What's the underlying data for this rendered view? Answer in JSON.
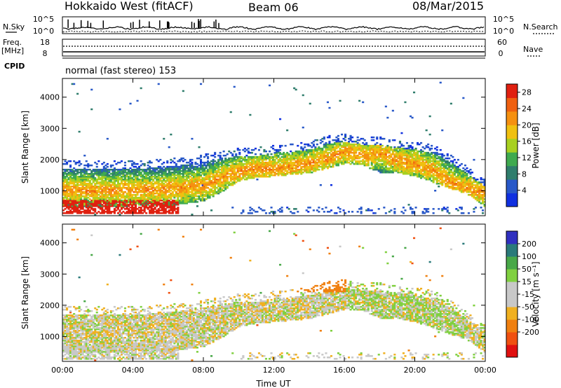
{
  "header": {
    "title": "Hokkaido West (fitACF)",
    "beam": "Beam 06",
    "date": "08/Mar/2015"
  },
  "top_panels": {
    "nsky_label": "N.Sky",
    "nsky_ticks": [
      "10^5",
      "10^0"
    ],
    "nsearch_label": "N.Search",
    "nsearch_ticks": [
      "10^5",
      "10^0"
    ],
    "freq_label_1": "Freq.",
    "freq_label_2": "[MHz]",
    "freq_ticks": [
      "18",
      "8"
    ],
    "nave_label": "Nave",
    "nave_ticks": [
      "60",
      "0"
    ],
    "cpid_label": "CPID",
    "cpid_value": "normal (fast stereo) 153"
  },
  "colors": {
    "power_scale": [
      "#1030e0",
      "#2858c8",
      "#2f7d6c",
      "#3faa4f",
      "#a8d020",
      "#f0c010",
      "#f59010",
      "#ef6010",
      "#e02010"
    ],
    "velocity_scale": [
      "#e01010",
      "#f05010",
      "#f08010",
      "#f0b020",
      "#c8c8c8",
      "#c8c8c8",
      "#80d040",
      "#48a848",
      "#2a7a7a",
      "#3030c0"
    ]
  },
  "chart_data": [
    {
      "type": "heatmap",
      "title": "Power",
      "ylabel": "Slant Range [km]",
      "xlabel": "Time UT",
      "ylim": [
        200,
        4600
      ],
      "xlim": [
        0,
        24
      ],
      "yticks": [
        "1000",
        "2000",
        "3000",
        "4000"
      ],
      "xticks": [
        "00:00",
        "04:00",
        "08:00",
        "12:00",
        "16:00",
        "20:00",
        "00:00"
      ],
      "colorbar_label": "Power [dB]",
      "colorbar_ticks": [
        "4",
        "8",
        "12",
        "16",
        "20",
        "24",
        "28"
      ],
      "colorbar_range": [
        0,
        30
      ],
      "scatter_profile": {
        "hours": [
          0,
          2,
          4,
          6,
          8,
          9,
          10,
          11,
          12,
          13,
          14,
          15,
          16,
          17,
          18,
          19,
          20,
          21,
          22,
          23,
          24
        ],
        "lower_edge_km": [
          600,
          600,
          650,
          650,
          800,
          1100,
          1450,
          1550,
          1600,
          1650,
          1700,
          1850,
          2000,
          1950,
          1700,
          1700,
          1600,
          1400,
          1200,
          1000,
          600
        ],
        "band_km": [
          1000,
          1000,
          1000,
          1050,
          1150,
          1400,
          1600,
          1700,
          1700,
          1750,
          1850,
          2000,
          2250,
          2100,
          2200,
          1950,
          1850,
          1650,
          1250,
          1050,
          900
        ],
        "upper_edge_km": [
          1700,
          1700,
          1700,
          1750,
          1900,
          2000,
          2100,
          2100,
          2200,
          2250,
          2300,
          2500,
          2550,
          2450,
          2450,
          2350,
          2300,
          2200,
          1900,
          1500,
          1100
        ]
      }
    },
    {
      "type": "heatmap",
      "title": "Velocity",
      "ylabel": "Slant Range [km]",
      "xlabel": "Time UT",
      "ylim": [
        200,
        4600
      ],
      "xlim": [
        0,
        24
      ],
      "yticks": [
        "1000",
        "2000",
        "3000",
        "4000"
      ],
      "xticks": [
        "00:00",
        "04:00",
        "08:00",
        "12:00",
        "16:00",
        "20:00",
        "00:00"
      ],
      "colorbar_label": "Velocity [m s⁻¹]",
      "colorbar_ticks": [
        "200",
        "100",
        "50",
        "15",
        "-15",
        "-50",
        "-100",
        "-200"
      ],
      "colorbar_range": [
        -250,
        250
      ]
    }
  ],
  "axes": {
    "time_label": "Time UT"
  }
}
